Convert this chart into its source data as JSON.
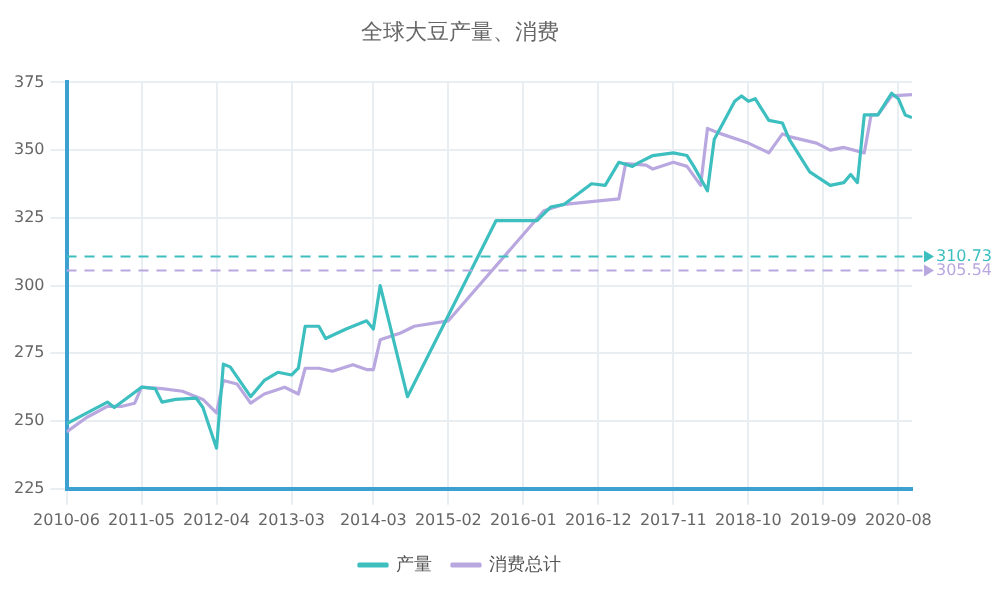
{
  "chart_data": {
    "type": "line",
    "title": "全球大豆产量、消费",
    "xlim": [
      "2010-06",
      "2020-10"
    ],
    "xticks": [
      "2010-06",
      "2011-05",
      "2012-04",
      "2013-03",
      "2014-03",
      "2015-02",
      "2016-01",
      "2016-12",
      "2017-11",
      "2018-10",
      "2019-09",
      "2020-08"
    ],
    "ylim": [
      225,
      375
    ],
    "yticks": [
      225,
      250,
      275,
      300,
      325,
      350,
      375
    ],
    "series": [
      {
        "name": "产量",
        "color": "#3dbfc0",
        "x": [
          "2010-06",
          "2010-09",
          "2010-12",
          "2011-01",
          "2011-05",
          "2011-07",
          "2011-08",
          "2011-10",
          "2012-01",
          "2012-02",
          "2012-04",
          "2012-05",
          "2012-06",
          "2012-09",
          "2012-11",
          "2013-01",
          "2013-03",
          "2013-04",
          "2013-05",
          "2013-07",
          "2013-08",
          "2013-11",
          "2014-02",
          "2014-03",
          "2014-04",
          "2014-08",
          "2015-09",
          "2016-03",
          "2016-05",
          "2016-07",
          "2016-11",
          "2017-01",
          "2017-03",
          "2017-05",
          "2017-06",
          "2017-08",
          "2017-11",
          "2018-01",
          "2018-02",
          "2018-04",
          "2018-05",
          "2018-06",
          "2018-08",
          "2018-09",
          "2018-10",
          "2018-11",
          "2019-01",
          "2019-03",
          "2019-04",
          "2019-07",
          "2019-10",
          "2019-12",
          "2020-01",
          "2020-02",
          "2020-03",
          "2020-05",
          "2020-07",
          "2020-08",
          "2020-09",
          "2020-10"
        ],
        "values": [
          249,
          253,
          257,
          255,
          262.5,
          262,
          257,
          258,
          258.5,
          255,
          240,
          271,
          270,
          259,
          265,
          268,
          267,
          269.5,
          285,
          285,
          280.5,
          284,
          287,
          284,
          300,
          259,
          324,
          324,
          329,
          330,
          337.6,
          337,
          345.5,
          344,
          345.5,
          348,
          349,
          348,
          344,
          335,
          354,
          358.6,
          368,
          370,
          368,
          369,
          361,
          360,
          354,
          342,
          337,
          338,
          341,
          338,
          363,
          363,
          371,
          369,
          363,
          362
        ]
      },
      {
        "name": "消费总计",
        "color": "#b9a7e0",
        "x": [
          "2010-06",
          "2010-09",
          "2010-12",
          "2011-02",
          "2011-04",
          "2011-05",
          "2011-08",
          "2011-11",
          "2012-02",
          "2012-04",
          "2012-05",
          "2012-07",
          "2012-09",
          "2012-11",
          "2013-02",
          "2013-04",
          "2013-05",
          "2013-07",
          "2013-09",
          "2013-12",
          "2014-02",
          "2014-03",
          "2014-04",
          "2014-07",
          "2014-09",
          "2015-02",
          "2016-04",
          "2016-07",
          "2016-11",
          "2017-03",
          "2017-04",
          "2017-07",
          "2017-08",
          "2017-11",
          "2018-01",
          "2018-03",
          "2018-04",
          "2018-06",
          "2018-10",
          "2019-01",
          "2019-03",
          "2019-04",
          "2019-08",
          "2019-10",
          "2019-12",
          "2020-03",
          "2020-04",
          "2020-05",
          "2020-07",
          "2020-10"
        ],
        "values": [
          246,
          251.4,
          255.4,
          255.4,
          256.6,
          262.5,
          262,
          261,
          258,
          253,
          265,
          263.7,
          256.6,
          260,
          262.5,
          260,
          269.5,
          269.5,
          268.4,
          270.8,
          269,
          269,
          280,
          282.5,
          285,
          287,
          327.6,
          330,
          331,
          332,
          345,
          344.5,
          343,
          345.5,
          344,
          337,
          358,
          356,
          352.6,
          349,
          356,
          355,
          352.6,
          350,
          351,
          349,
          363,
          363,
          370,
          370.5
        ]
      }
    ],
    "ref_lines": [
      {
        "axis": "y",
        "value": 310.73,
        "label": "310.73",
        "color": "#3dbfc0",
        "line_style": "dashed"
      },
      {
        "axis": "y",
        "value": 305.54,
        "label": "305.54",
        "color": "#b9a7e0",
        "line_style": "dashed"
      }
    ],
    "grid": true,
    "legend": "bottom",
    "marker": "none",
    "line_style": "solid"
  }
}
